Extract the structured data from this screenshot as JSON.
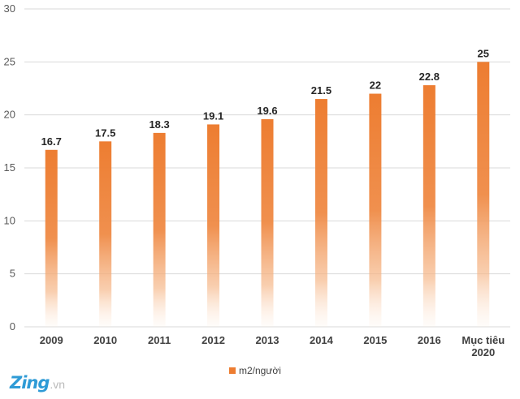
{
  "chart_data": {
    "type": "bar",
    "categories": [
      "2009",
      "2010",
      "2011",
      "2012",
      "2013",
      "2014",
      "2015",
      "2016",
      "Mục tiêu 2020"
    ],
    "series": [
      {
        "name": "m2/người",
        "values": [
          16.7,
          17.5,
          18.3,
          19.1,
          19.6,
          21.5,
          22,
          22.8,
          25
        ]
      }
    ],
    "data_labels": [
      "16.7",
      "17.5",
      "18.3",
      "19.1",
      "19.6",
      "21.5",
      "22",
      "22.8",
      "25"
    ],
    "y_ticks": [
      0,
      5,
      10,
      15,
      20,
      25,
      30
    ],
    "ylim": [
      0,
      30
    ],
    "grid": true,
    "legend_position": "bottom",
    "bar_color": "#ed7d31"
  },
  "watermark": {
    "main": "Zing",
    "sub": ".vn"
  }
}
